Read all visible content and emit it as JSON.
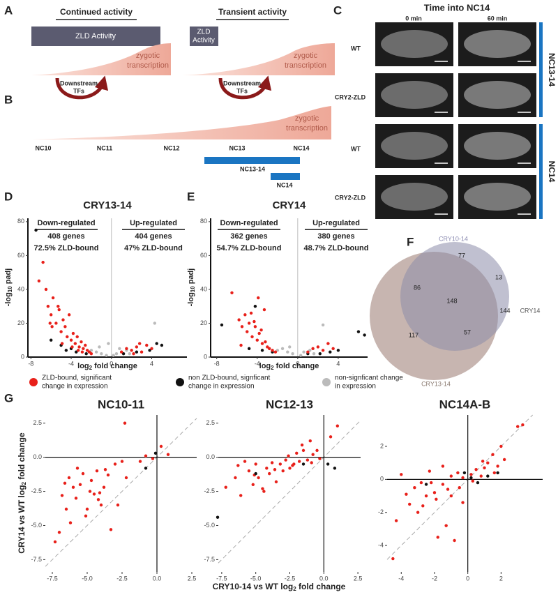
{
  "panel_a": {
    "letter": "A",
    "continued_title": "Continued activity",
    "transient_title": "Transient activity",
    "zld_activity": "ZLD Activity",
    "zld_short": [
      "ZLD",
      "Activity"
    ],
    "zygotic": [
      "zygotic",
      "transcription"
    ],
    "downstream": [
      "Downstream",
      "TFs"
    ]
  },
  "panel_b": {
    "letter": "B",
    "stages": [
      "NC10",
      "NC11",
      "NC12",
      "NC13",
      "NC14"
    ],
    "bars": [
      "NC13-14",
      "NC14"
    ]
  },
  "panel_c": {
    "letter": "C",
    "title": "Time into NC14",
    "columns": [
      "0 min",
      "60 min"
    ],
    "rows": [
      "WT",
      "CRY2-ZLD",
      "WT",
      "CRY2-ZLD"
    ],
    "groups": [
      "NC13-14",
      "NC14"
    ]
  },
  "panel_d": {
    "letter": "D",
    "type": "scatter",
    "title": "CRY13-14",
    "down": [
      "Down-regulated",
      "408 genes",
      "72.5% ZLD-bound"
    ],
    "up": [
      "Up-regulated",
      "404 genes",
      "47% ZLD-bound"
    ],
    "y_label": [
      "-log",
      "10",
      "padj"
    ],
    "x_label": [
      "log",
      "2",
      "fold change"
    ],
    "xlim": [
      -8.3,
      7.5
    ],
    "ylim": [
      0,
      82
    ],
    "xticks": [
      -8,
      -4,
      0,
      4
    ],
    "yticks": [
      0,
      20,
      40,
      60,
      80
    ],
    "series": [
      {
        "color": "#bbbbbb",
        "x": [
          -2,
          -1.5,
          -1,
          -0.5,
          0.2,
          0.5,
          1,
          1.5,
          -1.2,
          0.8,
          -0.3,
          1.8,
          4.3
        ],
        "y": [
          4,
          3,
          2,
          1,
          1,
          2,
          3,
          4,
          6,
          5,
          8,
          2,
          20
        ]
      },
      {
        "color": "#111111",
        "x": [
          -7.5,
          -6,
          -5,
          -4.5,
          -3.5,
          -2.5,
          1.2,
          2.5,
          3.8,
          4.5,
          5,
          -4
        ],
        "y": [
          75,
          10,
          7,
          4,
          3,
          2,
          2,
          3,
          4,
          8,
          7,
          5
        ]
      },
      {
        "color": "#e8201a",
        "x": [
          -7.2,
          -6.8,
          -6.5,
          -6.3,
          -6,
          -5.8,
          -5.5,
          -5.2,
          -5,
          -4.8,
          -4.6,
          -4.4,
          -4.2,
          -4,
          -3.8,
          -3.6,
          -3.4,
          -3.2,
          -3,
          -2.8,
          -2.6,
          -2.4,
          -2.2,
          -2,
          -5.9,
          -4.9,
          -3.9,
          -3.3,
          -2.9,
          1,
          1.5,
          2,
          2.5,
          3,
          3.5,
          4,
          2.2,
          2.8,
          -6.1,
          -5.3
        ],
        "y": [
          45,
          56,
          40,
          30,
          25,
          35,
          20,
          28,
          15,
          22,
          18,
          12,
          25,
          10,
          14,
          8,
          12,
          6,
          9,
          5,
          7,
          4,
          3,
          2,
          18,
          8,
          6,
          4,
          3,
          3,
          5,
          4,
          6,
          3,
          7,
          5,
          2,
          8,
          20,
          30
        ]
      }
    ]
  },
  "panel_e": {
    "letter": "E",
    "type": "scatter",
    "title": "CRY14",
    "down": [
      "Down-regulated",
      "362 genes",
      "54.7% ZLD-bound"
    ],
    "up": [
      "Up-regulated",
      "380 genes",
      "48.7% ZLD-bound"
    ],
    "y_label": [
      "-log",
      "10",
      "padj"
    ],
    "x_label": [
      "log",
      "2",
      "fold change"
    ],
    "xlim": [
      -8.6,
      6.9
    ],
    "ylim": [
      0,
      82
    ],
    "xticks": [
      -8,
      -4,
      0,
      4
    ],
    "yticks": [
      0,
      20,
      40,
      60,
      80
    ],
    "series": [
      {
        "color": "#bbbbbb",
        "x": [
          -2,
          -1.5,
          -1,
          -0.5,
          0.3,
          0.6,
          1.2,
          1.6,
          -0.8,
          2.5
        ],
        "y": [
          4,
          5,
          3,
          2,
          1,
          3,
          4,
          2,
          6,
          19
        ]
      },
      {
        "color": "#111111",
        "x": [
          -7.5,
          -4.2,
          -4.8,
          -3.5,
          -2.5,
          6,
          6.6,
          3.2,
          4,
          2.2,
          1
        ],
        "y": [
          19,
          30,
          5,
          4,
          3,
          15,
          13,
          3,
          4,
          2,
          2
        ]
      },
      {
        "color": "#e8201a",
        "x": [
          -6.5,
          -5.8,
          -5.5,
          -5.2,
          -5,
          -4.8,
          -4.5,
          -4.2,
          -4,
          -3.8,
          -3.5,
          -3.2,
          -3,
          -2.8,
          -2.5,
          -2.2,
          -4.6,
          -3.6,
          -5.6,
          -4.3,
          1,
          1.5,
          2,
          2.5,
          3,
          3.5,
          -3.9,
          -3.3
        ],
        "y": [
          38,
          22,
          18,
          25,
          15,
          20,
          12,
          18,
          10,
          14,
          8,
          9,
          6,
          5,
          4,
          3,
          26,
          16,
          7,
          21,
          3,
          5,
          6,
          4,
          8,
          5,
          35,
          28
        ]
      }
    ]
  },
  "panel_f": {
    "letter": "F",
    "sets": [
      "CRY10-14",
      "CRY13-14",
      "CRY14"
    ],
    "counts": {
      "only_10_14": 77,
      "only_10_14_and_14": 13,
      "both_10_13": 86,
      "all": 148,
      "only_13_14": 117,
      "only_13_and_14": 57,
      "only_14": 144
    }
  },
  "legend": [
    {
      "color": "#e8201a",
      "label": [
        "ZLD-bound, significant",
        "change in expression"
      ]
    },
    {
      "color": "#111111",
      "label": [
        "non ZLD-bound, signficant",
        "change in expression"
      ]
    },
    {
      "color": "#bbbbbb",
      "label": [
        "non-signficant change",
        "in expression"
      ]
    }
  ],
  "panel_g": {
    "letter": "G",
    "y_label": [
      "CRY14 vs WT log",
      "2",
      " fold change"
    ],
    "x_label": [
      "CRY10-14 vs WT log",
      "2",
      " fold change"
    ],
    "charts": [
      {
        "type": "scatter",
        "title": "NC10-11",
        "xlim": [
          -8,
          2.85
        ],
        "ylim": [
          -8.4,
          3.1
        ],
        "xticks": [
          {
            "value": -7.5,
            "label": "-7.5"
          },
          {
            "value": -5,
            "label": "-5.0"
          },
          {
            "value": -2.5,
            "label": "-2.5"
          },
          {
            "value": 0,
            "label": "0.0"
          },
          {
            "value": 2.5,
            "label": "2.5"
          }
        ],
        "yticks": [
          {
            "value": -7.5,
            "label": "-7.5"
          },
          {
            "value": -5,
            "label": "-5.0"
          },
          {
            "value": -2.5,
            "label": "-2.5"
          },
          {
            "value": 0,
            "label": "0.0"
          },
          {
            "value": 2.5,
            "label": "2.5"
          }
        ],
        "series": [
          {
            "color": "#e8201a",
            "x": [
              -7.3,
              -7,
              -6.8,
              -6.5,
              -6.3,
              -6,
              -5.8,
              -5.5,
              -5.3,
              -5,
              -4.8,
              -4.5,
              -4.3,
              -4,
              -3.8,
              -3.5,
              -3.3,
              -3,
              -2.8,
              -2.5,
              -2.3,
              -6.2,
              -5.7,
              -4.7,
              -4.2,
              -3.7,
              -2.2,
              -1.2,
              -0.8,
              0.3,
              0.8,
              -0.3,
              -4.1,
              -5.1,
              -6.6
            ],
            "y": [
              -6.2,
              -5.5,
              -2.8,
              -3.8,
              -1.5,
              -2.2,
              -3,
              -2,
              -1.2,
              -3.8,
              -2.5,
              -2.7,
              -1,
              -3.5,
              -2.2,
              -1.3,
              -5.3,
              -0.5,
              -3.5,
              -0.3,
              2.5,
              -4.8,
              -0.8,
              -1.7,
              -3.1,
              -0.9,
              -1.5,
              -0.3,
              0.1,
              0.8,
              0.2,
              -0.1,
              -2.6,
              -4.3,
              -1.9
            ]
          },
          {
            "color": "#111111",
            "x": [
              -0.8,
              -0.1
            ],
            "y": [
              -0.8,
              0.3
            ]
          }
        ]
      },
      {
        "type": "scatter",
        "title": "NC12-13",
        "xlim": [
          -7.75,
          2.7
        ],
        "ylim": [
          -8.4,
          3.1
        ],
        "xticks": [
          {
            "value": -7.5,
            "label": "-7.5"
          },
          {
            "value": -5,
            "label": "-5.0"
          },
          {
            "value": -2.5,
            "label": "-2.5"
          },
          {
            "value": 0,
            "label": "0.0"
          },
          {
            "value": 2.5,
            "label": "2.5"
          }
        ],
        "yticks": [
          {
            "value": -7.5,
            "label": "-7.5"
          },
          {
            "value": -5,
            "label": "-5.0"
          },
          {
            "value": -2.5,
            "label": "-2.5"
          },
          {
            "value": 0,
            "label": "0.0"
          },
          {
            "value": 2.5,
            "label": "2.5"
          }
        ],
        "series": [
          {
            "color": "#e8201a",
            "x": [
              -7.2,
              -6.5,
              -6.1,
              -5.8,
              -5.5,
              -5.2,
              -5,
              -4.8,
              -4.5,
              -4.2,
              -4,
              -3.8,
              -3.5,
              -3.2,
              -3,
              -2.8,
              -2.5,
              -2.2,
              -2,
              -1.8,
              -1.5,
              -1.2,
              -1,
              -0.8,
              -0.5,
              -0.3,
              0.5,
              1,
              -6.3,
              -5.1,
              -4.4,
              -3.6,
              -2.6,
              -2.3,
              -1.6,
              -0.9
            ],
            "y": [
              -2.2,
              -1.5,
              -2.8,
              -0.3,
              -1,
              -2,
              -0.5,
              -1.5,
              -2.3,
              -0.8,
              -1.2,
              -0.4,
              -1.8,
              -0.5,
              -1,
              -0.2,
              -0.8,
              -0.5,
              0.3,
              -0.3,
              0.5,
              -0.2,
              1.2,
              0.2,
              0.5,
              -0.1,
              1.5,
              2.3,
              -0.6,
              -1.3,
              -2.5,
              -0.9,
              0.1,
              -0.6,
              0.9,
              -0.4
            ]
          },
          {
            "color": "#111111",
            "x": [
              -7.8,
              -5,
              -1.5,
              0.3,
              0.8
            ],
            "y": [
              -4.4,
              -1.2,
              -0.5,
              -0.5,
              -0.8
            ]
          }
        ]
      },
      {
        "type": "scatter",
        "title": "NC14A-B",
        "xlim": [
          -4.85,
          4.5
        ],
        "ylim": [
          -5.6,
          3.9
        ],
        "xticks": [
          -4,
          -2,
          0,
          2
        ],
        "yticks": [
          -4,
          -2,
          0,
          2
        ],
        "series": [
          {
            "color": "#e8201a",
            "x": [
              -4.5,
              -4.3,
              -4,
              -3.5,
              -3.2,
              -3,
              -2.8,
              -2.5,
              -2.3,
              -2,
              -1.8,
              -1.5,
              -1.3,
              -1,
              -0.8,
              -0.5,
              -0.3,
              0.2,
              0.5,
              0.8,
              1,
              1.2,
              1.5,
              1.8,
              2,
              2.2,
              3,
              3.3,
              -2.7,
              -1.9,
              -1.2,
              -0.6,
              0.3,
              0.9,
              1.6,
              -1.5,
              -0.3,
              -3.7,
              -2.2,
              -1
            ],
            "y": [
              -4.8,
              -2.5,
              0.3,
              -1.5,
              -0.5,
              -2,
              -0.2,
              -1,
              0.5,
              -0.8,
              -3.5,
              -0.3,
              -2.8,
              0.2,
              -3.7,
              -0.5,
              0.1,
              0.3,
              0.6,
              0.2,
              0.7,
              1,
              1.5,
              0.8,
              2,
              1.2,
              3.2,
              3.3,
              -1.6,
              -1.2,
              -0.6,
              0.4,
              -0.1,
              1.1,
              0.4,
              0.8,
              -1.4,
              -0.9,
              -0.2,
              -1
            ]
          },
          {
            "color": "#111111",
            "x": [
              -2.5,
              -0.2,
              0.2,
              0.6,
              1.2,
              1.8
            ],
            "y": [
              -0.3,
              0.4,
              0.1,
              -0.2,
              0.2,
              0.4
            ]
          }
        ]
      }
    ]
  }
}
